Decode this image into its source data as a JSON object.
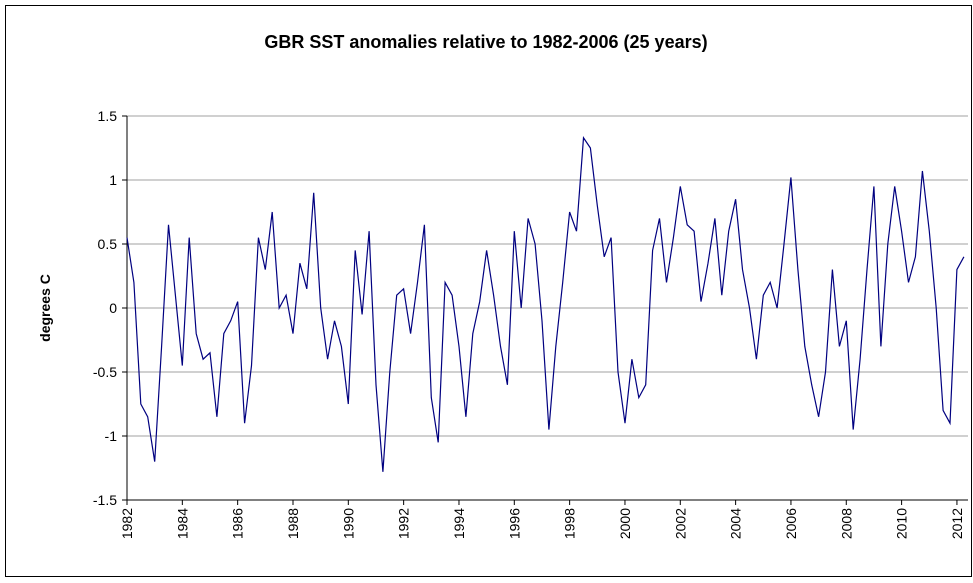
{
  "chart_data": {
    "type": "line",
    "title": "GBR SST anomalies relative to 1982-2006 (25 years)",
    "y_label": "degrees C",
    "color": "#000080",
    "grid": true,
    "xlim": [
      1982,
      2012.4
    ],
    "ylim": [
      -1.5,
      1.5
    ],
    "xticks": [
      1982,
      1984,
      1986,
      1988,
      1990,
      1992,
      1994,
      1996,
      1998,
      2000,
      2002,
      2004,
      2006,
      2008,
      2010,
      2012
    ],
    "yticks": [
      -1.5,
      -1,
      -0.5,
      0,
      0.5,
      1,
      1.5
    ],
    "x": [
      1982,
      1982.25,
      1982.5,
      1982.75,
      1983,
      1983.25,
      1983.5,
      1983.75,
      1984,
      1984.25,
      1984.5,
      1984.75,
      1985,
      1985.25,
      1985.5,
      1985.75,
      1986,
      1986.25,
      1986.5,
      1986.75,
      1987,
      1987.25,
      1987.5,
      1987.75,
      1988,
      1988.25,
      1988.5,
      1988.75,
      1989,
      1989.25,
      1989.5,
      1989.75,
      1990,
      1990.25,
      1990.5,
      1990.75,
      1991,
      1991.25,
      1991.5,
      1991.75,
      1992,
      1992.25,
      1992.5,
      1992.75,
      1993,
      1993.25,
      1993.5,
      1993.75,
      1994,
      1994.25,
      1994.5,
      1994.75,
      1995,
      1995.25,
      1995.5,
      1995.75,
      1996,
      1996.25,
      1996.5,
      1996.75,
      1997,
      1997.25,
      1997.5,
      1997.75,
      1998,
      1998.25,
      1998.5,
      1998.75,
      1999,
      1999.25,
      1999.5,
      1999.75,
      2000,
      2000.25,
      2000.5,
      2000.75,
      2001,
      2001.25,
      2001.5,
      2001.75,
      2002,
      2002.25,
      2002.5,
      2002.75,
      2003,
      2003.25,
      2003.5,
      2003.75,
      2004,
      2004.25,
      2004.5,
      2004.75,
      2005,
      2005.25,
      2005.5,
      2005.75,
      2006,
      2006.25,
      2006.5,
      2006.75,
      2007,
      2007.25,
      2007.5,
      2007.75,
      2008,
      2008.25,
      2008.5,
      2008.75,
      2009,
      2009.25,
      2009.5,
      2009.75,
      2010,
      2010.25,
      2010.5,
      2010.75,
      2011,
      2011.25,
      2011.5,
      2011.75,
      2012,
      2012.25
    ],
    "values": [
      0.55,
      0.2,
      -0.75,
      -0.85,
      -1.2,
      -0.3,
      0.65,
      0.1,
      -0.45,
      0.55,
      -0.2,
      -0.4,
      -0.35,
      -0.85,
      -0.2,
      -0.1,
      0.05,
      -0.9,
      -0.45,
      0.55,
      0.3,
      0.75,
      0.0,
      0.1,
      -0.2,
      0.35,
      0.15,
      0.9,
      0.0,
      -0.4,
      -0.1,
      -0.3,
      -0.75,
      0.45,
      -0.05,
      0.6,
      -0.6,
      -1.28,
      -0.5,
      0.1,
      0.15,
      -0.2,
      0.2,
      0.65,
      -0.7,
      -1.05,
      0.2,
      0.1,
      -0.3,
      -0.85,
      -0.2,
      0.05,
      0.45,
      0.1,
      -0.3,
      -0.6,
      0.6,
      0.0,
      0.7,
      0.5,
      -0.1,
      -0.95,
      -0.3,
      0.2,
      0.75,
      0.6,
      1.33,
      1.25,
      0.8,
      0.4,
      0.55,
      -0.5,
      -0.9,
      -0.4,
      -0.7,
      -0.6,
      0.45,
      0.7,
      0.2,
      0.55,
      0.95,
      0.65,
      0.6,
      0.05,
      0.35,
      0.7,
      0.1,
      0.6,
      0.85,
      0.3,
      0.0,
      -0.4,
      0.1,
      0.2,
      0.0,
      0.5,
      1.02,
      0.3,
      -0.3,
      -0.6,
      -0.85,
      -0.5,
      0.3,
      -0.3,
      -0.1,
      -0.95,
      -0.4,
      0.3,
      0.95,
      -0.3,
      0.5,
      0.95,
      0.6,
      0.2,
      0.4,
      1.07,
      0.6,
      0.0,
      -0.8,
      -0.9,
      0.3,
      0.4
    ]
  }
}
